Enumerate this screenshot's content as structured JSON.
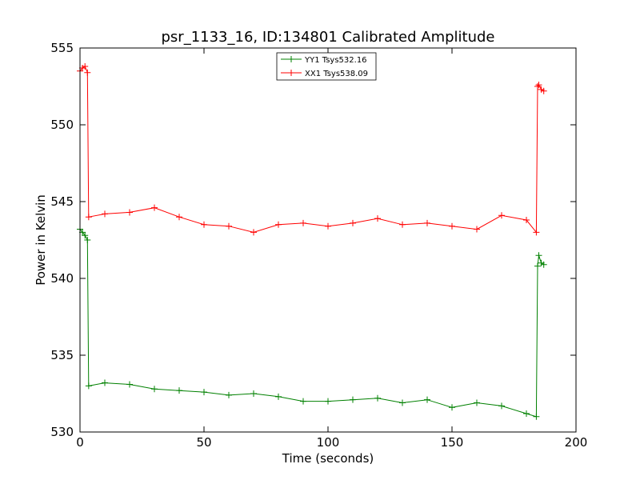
{
  "chart_data": {
    "type": "line",
    "title": "psr_1133_16, ID:134801 Calibrated Amplitude",
    "xlabel": "Time (seconds)",
    "ylabel": "Power in Kelvin",
    "xlim": [
      0,
      200
    ],
    "ylim": [
      530,
      555
    ],
    "xticks": [
      0,
      50,
      100,
      150,
      200
    ],
    "yticks": [
      530,
      535,
      540,
      545,
      550,
      555
    ],
    "grid": false,
    "legend_position": "top-center",
    "marker": "+",
    "series": [
      {
        "name": "YY1 Tsys532.16",
        "color": "#008000",
        "segments": [
          {
            "x": [
              0,
              1,
              2,
              3
            ],
            "y": [
              543.2,
              543.0,
              542.8,
              542.5
            ]
          },
          {
            "x": [
              3.5,
              10,
              20,
              30,
              40,
              50,
              60,
              70,
              80,
              90,
              100,
              110,
              120,
              130,
              140,
              150,
              160,
              170,
              180,
              184
            ],
            "y": [
              533.0,
              533.2,
              533.1,
              532.8,
              532.7,
              532.6,
              532.4,
              532.5,
              532.3,
              532.0,
              532.0,
              532.1,
              532.2,
              531.9,
              532.1,
              531.6,
              531.9,
              531.7,
              531.2,
              531.0
            ]
          },
          {
            "x": [
              184.5,
              185,
              186,
              187
            ],
            "y": [
              540.8,
              541.5,
              541.0,
              540.9
            ]
          }
        ]
      },
      {
        "name": "XX1 Tsys538.09",
        "color": "#ff0000",
        "segments": [
          {
            "x": [
              0,
              1,
              2,
              3
            ],
            "y": [
              553.5,
              553.7,
              553.8,
              553.4
            ]
          },
          {
            "x": [
              3.5,
              10,
              20,
              30,
              40,
              50,
              60,
              70,
              80,
              90,
              100,
              110,
              120,
              130,
              140,
              150,
              160,
              170,
              180,
              184
            ],
            "y": [
              544.0,
              544.2,
              544.3,
              544.6,
              544.0,
              543.5,
              543.4,
              543.0,
              543.5,
              543.6,
              543.4,
              543.6,
              543.9,
              543.5,
              543.6,
              543.4,
              543.2,
              544.1,
              543.8,
              543.0
            ]
          },
          {
            "x": [
              184.5,
              185,
              186,
              187
            ],
            "y": [
              552.5,
              552.6,
              552.3,
              552.2
            ]
          }
        ]
      }
    ]
  }
}
